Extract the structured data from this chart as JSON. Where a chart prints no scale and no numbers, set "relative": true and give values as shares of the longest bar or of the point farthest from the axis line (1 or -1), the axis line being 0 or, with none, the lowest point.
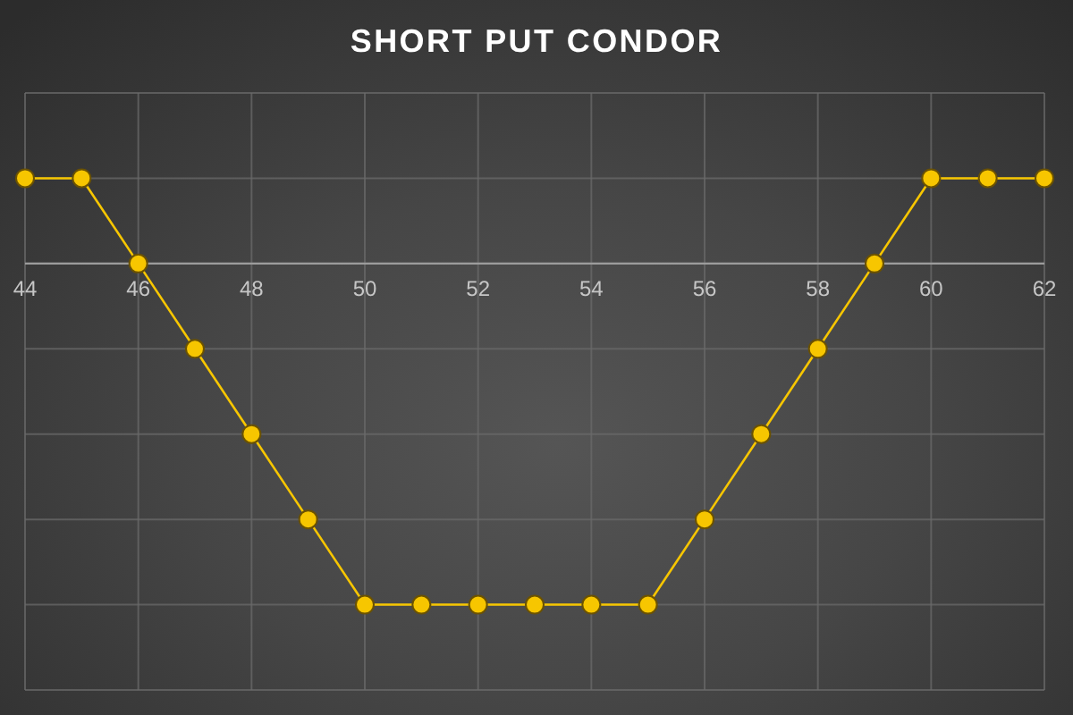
{
  "chart_data": {
    "type": "line",
    "title": "SHORT PUT CONDOR",
    "x": [
      44,
      45,
      46,
      47,
      48,
      49,
      50,
      51,
      52,
      53,
      54,
      55,
      56,
      57,
      58,
      59,
      60,
      61,
      62
    ],
    "series": [
      {
        "color": "#f7c600",
        "values": [
          0.25,
          0.25,
          0,
          -0.25,
          -0.5,
          -0.75,
          -1,
          -1,
          -1,
          -1,
          -1,
          -1,
          -0.75,
          -0.5,
          -0.25,
          0,
          0.25,
          0.25,
          0.25
        ]
      }
    ],
    "relative": true,
    "xlim": [
      44,
      62
    ],
    "xticks": [
      44,
      46,
      48,
      50,
      52,
      54,
      56,
      58,
      60,
      62
    ],
    "grid": true,
    "marker": "circle",
    "line_style": "solid"
  }
}
